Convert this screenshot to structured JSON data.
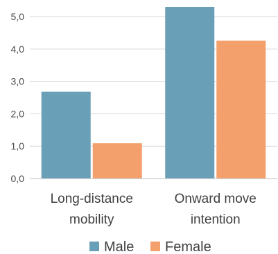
{
  "chart_data": {
    "type": "bar",
    "categories": [
      [
        "Long-distance",
        "mobility"
      ],
      [
        "Onward move",
        "intention"
      ]
    ],
    "series": [
      {
        "name": "Male",
        "values": [
          2.68,
          5.3
        ],
        "color": "#6a9fb8"
      },
      {
        "name": "Female",
        "values": [
          1.09,
          4.26
        ],
        "color": "#f3a06d"
      }
    ],
    "ylim": [
      0,
      5.3
    ],
    "yticks": [
      "0,0",
      "1,0",
      "2,0",
      "3,0",
      "4,0",
      "5,0"
    ],
    "grid": true,
    "legend_position": "bottom",
    "title": "",
    "xlabel": "",
    "ylabel": ""
  }
}
